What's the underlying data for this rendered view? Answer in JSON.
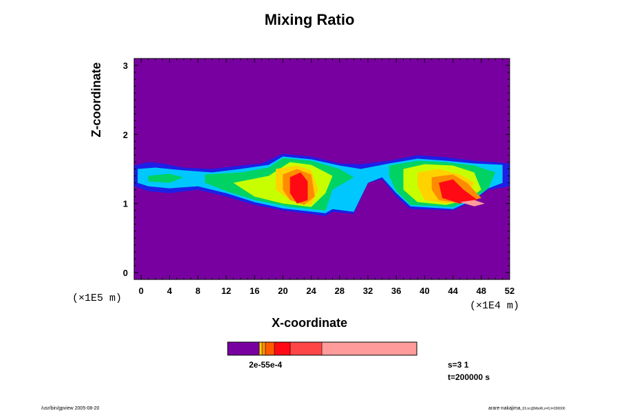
{
  "chart_data": {
    "type": "heatmap",
    "title": "Mixing Ratio",
    "xlabel": "X-coordinate",
    "ylabel": "Z-coordinate",
    "x_multiplier": "(×1E4 m)",
    "y_multiplier": "(×1E5 m)",
    "xlim": [
      -1,
      52
    ],
    "ylim": [
      -0.1,
      3.1
    ],
    "x_ticks": [
      "0",
      "4",
      "8",
      "12",
      "16",
      "20",
      "24",
      "28",
      "32",
      "36",
      "40",
      "44",
      "48",
      "52"
    ],
    "y_ticks": [
      "0",
      "1",
      "2",
      "3"
    ],
    "background_color": "#7800a0",
    "colorbar": {
      "labels_overlapped": "2e-55e-4",
      "segments": [
        {
          "color": "#7800a0"
        },
        {
          "color": "#ffd200"
        },
        {
          "color": "#ff8c00"
        },
        {
          "color": "#ff5a00"
        },
        {
          "color": "#ff0a14"
        },
        {
          "color": "#ff4646"
        },
        {
          "color": "#ff9b9b"
        }
      ]
    },
    "cloud_layers": [
      {
        "color": "#1e1ee6",
        "regions": [
          [
            [
              -1,
              1.55
            ],
            [
              1,
              1.6
            ],
            [
              3,
              1.58
            ],
            [
              6,
              1.52
            ],
            [
              10,
              1.5
            ],
            [
              14,
              1.55
            ],
            [
              17,
              1.58
            ],
            [
              20,
              1.72
            ],
            [
              24,
              1.68
            ],
            [
              28,
              1.58
            ],
            [
              31,
              1.57
            ],
            [
              35,
              1.62
            ],
            [
              39,
              1.7
            ],
            [
              43,
              1.67
            ],
            [
              47,
              1.62
            ],
            [
              50,
              1.6
            ],
            [
              52,
              1.58
            ],
            [
              52,
              1.25
            ],
            [
              49,
              1.2
            ],
            [
              47,
              1.05
            ],
            [
              44,
              0.9
            ],
            [
              38,
              0.92
            ],
            [
              36,
              1.1
            ],
            [
              34,
              1.35
            ],
            [
              32,
              1.3
            ],
            [
              30,
              0.85
            ],
            [
              27,
              0.88
            ],
            [
              26,
              0.82
            ],
            [
              20,
              0.9
            ],
            [
              16,
              0.98
            ],
            [
              12,
              1.1
            ],
            [
              8,
              1.2
            ],
            [
              4,
              1.15
            ],
            [
              1,
              1.18
            ],
            [
              -1,
              1.25
            ]
          ]
        ]
      },
      {
        "color": "#00c8ff",
        "regions": [
          [
            [
              -0.5,
              1.5
            ],
            [
              2,
              1.52
            ],
            [
              6,
              1.48
            ],
            [
              10,
              1.45
            ],
            [
              14,
              1.5
            ],
            [
              18,
              1.56
            ],
            [
              20,
              1.68
            ],
            [
              24,
              1.64
            ],
            [
              28,
              1.55
            ],
            [
              31,
              1.5
            ],
            [
              35,
              1.58
            ],
            [
              39,
              1.65
            ],
            [
              43,
              1.62
            ],
            [
              47,
              1.58
            ],
            [
              51,
              1.56
            ],
            [
              51,
              1.3
            ],
            [
              49,
              1.22
            ],
            [
              47,
              1.06
            ],
            [
              44,
              0.92
            ],
            [
              38,
              0.96
            ],
            [
              36,
              1.15
            ],
            [
              34,
              1.38
            ],
            [
              32,
              1.3
            ],
            [
              30,
              0.88
            ],
            [
              27,
              0.92
            ],
            [
              26,
              0.86
            ],
            [
              20,
              0.93
            ],
            [
              16,
              1.02
            ],
            [
              12,
              1.15
            ],
            [
              8,
              1.25
            ],
            [
              4,
              1.22
            ],
            [
              1,
              1.25
            ],
            [
              -0.5,
              1.3
            ]
          ]
        ]
      },
      {
        "color": "#00d264",
        "regions": [
          [
            [
              9,
              1.42
            ],
            [
              14,
              1.45
            ],
            [
              18,
              1.52
            ],
            [
              20,
              1.66
            ],
            [
              24,
              1.62
            ],
            [
              28,
              1.5
            ],
            [
              30,
              1.38
            ],
            [
              27,
              1.2
            ],
            [
              26,
              0.9
            ],
            [
              21,
              0.95
            ],
            [
              16,
              1.05
            ],
            [
              12,
              1.18
            ],
            [
              9,
              1.3
            ]
          ],
          [
            [
              35,
              1.55
            ],
            [
              39,
              1.62
            ],
            [
              43,
              1.6
            ],
            [
              47,
              1.55
            ],
            [
              50,
              1.45
            ],
            [
              49,
              1.22
            ],
            [
              47,
              1.08
            ],
            [
              44,
              0.95
            ],
            [
              38,
              0.98
            ],
            [
              36,
              1.18
            ],
            [
              35,
              1.4
            ]
          ],
          [
            [
              1,
              1.4
            ],
            [
              4,
              1.43
            ],
            [
              6,
              1.38
            ],
            [
              4,
              1.3
            ],
            [
              1,
              1.32
            ]
          ]
        ]
      },
      {
        "color": "#c8ff00",
        "regions": [
          [
            [
              13,
              1.3
            ],
            [
              18,
              1.4
            ],
            [
              21,
              1.6
            ],
            [
              24,
              1.56
            ],
            [
              27,
              1.4
            ],
            [
              26,
              1.15
            ],
            [
              24,
              0.95
            ],
            [
              20,
              1.0
            ],
            [
              16,
              1.1
            ]
          ],
          [
            [
              37,
              1.5
            ],
            [
              40,
              1.57
            ],
            [
              44,
              1.55
            ],
            [
              47,
              1.45
            ],
            [
              48,
              1.2
            ],
            [
              46,
              1.05
            ],
            [
              43,
              0.98
            ],
            [
              39,
              1.02
            ],
            [
              37,
              1.2
            ]
          ]
        ]
      },
      {
        "color": "#ffd200",
        "regions": [
          [
            [
              19,
              1.5
            ],
            [
              22,
              1.55
            ],
            [
              24,
              1.48
            ],
            [
              25,
              1.2
            ],
            [
              24,
              0.98
            ],
            [
              21,
              1.05
            ],
            [
              19,
              1.2
            ]
          ],
          [
            [
              39,
              1.45
            ],
            [
              42,
              1.5
            ],
            [
              45,
              1.42
            ],
            [
              47,
              1.3
            ],
            [
              46,
              1.08
            ],
            [
              43,
              1.0
            ],
            [
              40,
              1.05
            ],
            [
              39,
              1.25
            ]
          ]
        ]
      },
      {
        "color": "#ff8c00",
        "regions": [
          [
            [
              20,
              1.42
            ],
            [
              22,
              1.5
            ],
            [
              24,
              1.42
            ],
            [
              24.5,
              1.1
            ],
            [
              23,
              0.98
            ],
            [
              21,
              1.05
            ],
            [
              20,
              1.2
            ]
          ],
          [
            [
              41,
              1.38
            ],
            [
              44,
              1.42
            ],
            [
              46,
              1.3
            ],
            [
              48,
              1.08
            ],
            [
              45,
              1.0
            ],
            [
              42,
              1.05
            ],
            [
              41,
              1.2
            ]
          ]
        ]
      },
      {
        "color": "#ff0a14",
        "regions": [
          [
            [
              21,
              1.38
            ],
            [
              22.5,
              1.45
            ],
            [
              23.5,
              1.32
            ],
            [
              23.5,
              1.05
            ],
            [
              22,
              1.0
            ],
            [
              21,
              1.15
            ]
          ],
          [
            [
              42,
              1.3
            ],
            [
              44,
              1.35
            ],
            [
              45.5,
              1.2
            ],
            [
              47.5,
              1.05
            ],
            [
              45,
              1.0
            ],
            [
              42.5,
              1.08
            ]
          ]
        ]
      },
      {
        "color": "#ff9b9b",
        "regions": [
          [
            [
              45,
              1.02
            ],
            [
              47,
              1.05
            ],
            [
              48.5,
              1.0
            ],
            [
              47,
              0.96
            ]
          ]
        ]
      }
    ],
    "stats": {
      "s": "s=3 1",
      "t": "t=200000 s"
    }
  },
  "footer": {
    "left": "/usr/bin/gpview 2005-08-20",
    "right_main": "arare-nakajima",
    "right_small": "_03.nc@MixRt,x=0,t=200000"
  }
}
